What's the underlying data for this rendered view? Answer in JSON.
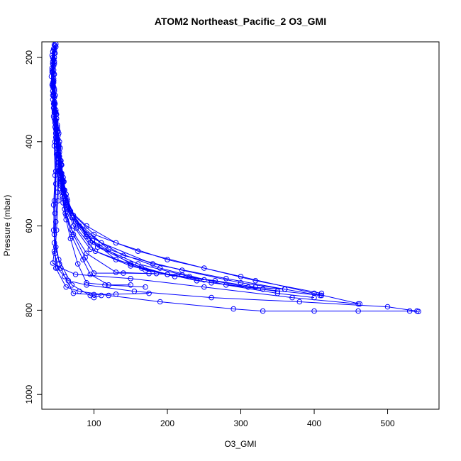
{
  "chart_data": {
    "type": "scatter",
    "title": "ATOM2 Northeast_Pacific_2 O3_GMI",
    "xlabel": "O3_GMI",
    "ylabel": "Pressure (mbar)",
    "xlim": [
      29,
      570
    ],
    "ylim": [
      1035,
      163
    ],
    "y_reversed": true,
    "x_ticks": [
      100,
      200,
      300,
      400,
      500
    ],
    "y_ticks": [
      200,
      400,
      600,
      800,
      1000
    ],
    "grid": false,
    "legend": "none",
    "series_color": "#0000ff",
    "series": [
      {
        "points": [
          [
            48,
            168
          ],
          [
            46,
            190
          ],
          [
            44,
            215
          ],
          [
            45,
            240
          ],
          [
            44,
            265
          ],
          [
            45,
            290
          ],
          [
            46,
            320
          ],
          [
            47,
            350
          ],
          [
            48,
            380
          ],
          [
            50,
            410
          ],
          [
            52,
            440
          ],
          [
            53,
            470
          ],
          [
            55,
            500
          ],
          [
            57,
            530
          ],
          [
            62,
            555
          ],
          [
            90,
            600
          ],
          [
            130,
            640
          ],
          [
            200,
            680
          ],
          [
            300,
            720
          ],
          [
            400,
            760
          ],
          [
            462,
            785
          ]
        ]
      },
      {
        "points": [
          [
            46,
            170
          ],
          [
            44,
            200
          ],
          [
            43,
            230
          ],
          [
            45,
            260
          ],
          [
            44,
            290
          ],
          [
            46,
            320
          ],
          [
            48,
            360
          ],
          [
            50,
            400
          ],
          [
            52,
            430
          ],
          [
            54,
            460
          ],
          [
            56,
            490
          ],
          [
            58,
            520
          ],
          [
            64,
            560
          ],
          [
            100,
            620
          ],
          [
            160,
            660
          ],
          [
            250,
            700
          ],
          [
            320,
            730
          ],
          [
            410,
            760
          ]
        ]
      },
      {
        "points": [
          [
            47,
            172
          ],
          [
            45,
            205
          ],
          [
            44,
            235
          ],
          [
            46,
            275
          ],
          [
            47,
            310
          ],
          [
            49,
            345
          ],
          [
            51,
            385
          ],
          [
            53,
            425
          ],
          [
            55,
            455
          ],
          [
            57,
            495
          ],
          [
            60,
            530
          ],
          [
            70,
            580
          ],
          [
            110,
            640
          ],
          [
            180,
            690
          ],
          [
            280,
            725
          ],
          [
            360,
            750
          ],
          [
            408,
            765
          ]
        ]
      },
      {
        "points": [
          [
            48,
            175
          ],
          [
            46,
            210
          ],
          [
            45,
            250
          ],
          [
            47,
            290
          ],
          [
            48,
            330
          ],
          [
            50,
            370
          ],
          [
            52,
            410
          ],
          [
            54,
            445
          ],
          [
            56,
            480
          ],
          [
            59,
            515
          ],
          [
            66,
            560
          ],
          [
            90,
            620
          ],
          [
            140,
            670
          ],
          [
            220,
            705
          ],
          [
            300,
            735
          ],
          [
            360,
            750
          ]
        ]
      },
      {
        "points": [
          [
            46,
            178
          ],
          [
            44,
            215
          ],
          [
            45,
            255
          ],
          [
            46,
            295
          ],
          [
            48,
            335
          ],
          [
            50,
            375
          ],
          [
            52,
            415
          ],
          [
            55,
            455
          ],
          [
            58,
            495
          ],
          [
            64,
            540
          ],
          [
            80,
            600
          ],
          [
            120,
            655
          ],
          [
            190,
            700
          ],
          [
            280,
            740
          ],
          [
            350,
            760
          ],
          [
            400,
            770
          ]
        ]
      },
      {
        "points": [
          [
            45,
            180
          ],
          [
            43,
            225
          ],
          [
            44,
            270
          ],
          [
            46,
            310
          ],
          [
            48,
            350
          ],
          [
            51,
            395
          ],
          [
            53,
            435
          ],
          [
            56,
            475
          ],
          [
            60,
            515
          ],
          [
            68,
            565
          ],
          [
            90,
            625
          ],
          [
            130,
            680
          ],
          [
            200,
            715
          ],
          [
            265,
            730
          ],
          [
            320,
            745
          ]
        ]
      },
      {
        "points": [
          [
            46,
            183
          ],
          [
            45,
            230
          ],
          [
            46,
            280
          ],
          [
            48,
            325
          ],
          [
            50,
            365
          ],
          [
            52,
            405
          ],
          [
            55,
            445
          ],
          [
            58,
            485
          ],
          [
            62,
            525
          ],
          [
            72,
            575
          ],
          [
            98,
            635
          ],
          [
            150,
            690
          ],
          [
            200,
            715
          ],
          [
            250,
            728
          ]
        ]
      },
      {
        "points": [
          [
            44,
            186
          ],
          [
            43,
            235
          ],
          [
            45,
            285
          ],
          [
            47,
            330
          ],
          [
            49,
            370
          ],
          [
            52,
            410
          ],
          [
            54,
            450
          ],
          [
            57,
            490
          ],
          [
            61,
            530
          ],
          [
            70,
            580
          ],
          [
            95,
            640
          ],
          [
            160,
            690
          ],
          [
            230,
            720
          ],
          [
            310,
            745
          ],
          [
            360,
            750
          ]
        ]
      },
      {
        "points": [
          [
            47,
            190
          ],
          [
            46,
            240
          ],
          [
            47,
            290
          ],
          [
            49,
            335
          ],
          [
            51,
            375
          ],
          [
            54,
            415
          ],
          [
            56,
            455
          ],
          [
            59,
            495
          ],
          [
            63,
            535
          ],
          [
            75,
            590
          ],
          [
            105,
            650
          ],
          [
            165,
            700
          ],
          [
            240,
            730
          ],
          [
            330,
            750
          ],
          [
            410,
            765
          ]
        ]
      },
      {
        "points": [
          [
            43,
            195
          ],
          [
            42,
            245
          ],
          [
            44,
            300
          ],
          [
            46,
            345
          ],
          [
            48,
            390
          ],
          [
            51,
            430
          ],
          [
            54,
            470
          ],
          [
            57,
            510
          ],
          [
            62,
            550
          ],
          [
            72,
            600
          ],
          [
            95,
            655
          ],
          [
            150,
            695
          ],
          [
            210,
            720
          ]
        ]
      },
      {
        "points": [
          [
            46,
            200
          ],
          [
            45,
            255
          ],
          [
            46,
            305
          ],
          [
            48,
            350
          ],
          [
            50,
            395
          ],
          [
            52,
            435
          ],
          [
            55,
            475
          ],
          [
            58,
            515
          ],
          [
            63,
            555
          ],
          [
            76,
            605
          ],
          [
            102,
            660
          ],
          [
            170,
            705
          ],
          [
            260,
            735
          ],
          [
            350,
            755
          ]
        ]
      },
      {
        "points": [
          [
            45,
            205
          ],
          [
            44,
            260
          ],
          [
            45,
            310
          ],
          [
            47,
            355
          ],
          [
            49,
            400
          ],
          [
            51,
            440
          ],
          [
            53,
            480
          ],
          [
            56,
            520
          ],
          [
            60,
            560
          ],
          [
            70,
            610
          ],
          [
            90,
            665
          ],
          [
            130,
            710
          ],
          [
            175,
            713
          ],
          [
            220,
            716
          ]
        ]
      },
      {
        "points": [
          [
            44,
            210
          ],
          [
            43,
            265
          ],
          [
            45,
            320
          ],
          [
            47,
            365
          ],
          [
            49,
            410
          ],
          [
            52,
            450
          ],
          [
            54,
            490
          ],
          [
            57,
            530
          ],
          [
            61,
            570
          ],
          [
            72,
            620
          ],
          [
            88,
            675
          ],
          [
            100,
            712
          ],
          [
            140,
            712
          ],
          [
            185,
            713
          ]
        ]
      },
      {
        "points": [
          [
            46,
            215
          ],
          [
            45,
            270
          ],
          [
            46,
            325
          ],
          [
            48,
            370
          ],
          [
            50,
            415
          ],
          [
            52,
            455
          ],
          [
            55,
            495
          ],
          [
            58,
            535
          ],
          [
            62,
            575
          ],
          [
            70,
            625
          ],
          [
            85,
            680
          ],
          [
            95,
            715
          ],
          [
            120,
            740
          ],
          [
            150,
            740
          ]
        ]
      },
      {
        "points": [
          [
            45,
            220
          ],
          [
            44,
            280
          ],
          [
            46,
            335
          ],
          [
            48,
            380
          ],
          [
            50,
            425
          ],
          [
            53,
            465
          ],
          [
            55,
            505
          ],
          [
            58,
            545
          ],
          [
            62,
            585
          ],
          [
            68,
            630
          ],
          [
            78,
            690
          ],
          [
            90,
            735
          ],
          [
            115,
            740
          ],
          [
            170,
            745
          ]
        ]
      },
      {
        "points": [
          [
            46,
            330
          ],
          [
            47,
            400
          ],
          [
            48,
            470
          ],
          [
            46,
            540
          ],
          [
            45,
            610
          ],
          [
            48,
            650
          ],
          [
            53,
            690
          ],
          [
            60,
            720
          ],
          [
            72,
            760
          ],
          [
            100,
            763
          ],
          [
            130,
            762
          ],
          [
            175,
            760
          ]
        ]
      },
      {
        "points": [
          [
            45,
            340
          ],
          [
            46,
            410
          ],
          [
            47,
            480
          ],
          [
            45,
            550
          ],
          [
            46,
            620
          ],
          [
            52,
            680
          ],
          [
            70,
            740
          ],
          [
            95,
            765
          ],
          [
            100,
            770
          ],
          [
            110,
            765
          ]
        ]
      },
      {
        "points": [
          [
            50,
            360
          ],
          [
            49,
            430
          ],
          [
            48,
            500
          ],
          [
            47,
            570
          ],
          [
            46,
            640
          ],
          [
            48,
            700
          ],
          [
            62,
            745
          ],
          [
            80,
            755
          ],
          [
            120,
            765
          ],
          [
            190,
            780
          ],
          [
            290,
            797
          ],
          [
            330,
            802
          ],
          [
            400,
            802
          ],
          [
            460,
            802
          ],
          [
            530,
            802
          ],
          [
            542,
            803
          ]
        ]
      },
      {
        "points": [
          [
            52,
            380
          ],
          [
            51,
            450
          ],
          [
            50,
            520
          ],
          [
            48,
            590
          ],
          [
            46,
            660
          ],
          [
            44,
            688
          ],
          [
            55,
            700
          ],
          [
            75,
            715
          ],
          [
            150,
            725
          ],
          [
            250,
            745
          ],
          [
            370,
            770
          ],
          [
            460,
            785
          ]
        ]
      },
      {
        "points": [
          [
            53,
            400
          ],
          [
            52,
            470
          ],
          [
            51,
            540
          ],
          [
            49,
            610
          ],
          [
            47,
            665
          ],
          [
            50,
            700
          ],
          [
            65,
            730
          ],
          [
            90,
            740
          ],
          [
            155,
            755
          ],
          [
            260,
            770
          ],
          [
            380,
            780
          ],
          [
            500,
            792
          ],
          [
            540,
            802
          ]
        ]
      }
    ]
  }
}
